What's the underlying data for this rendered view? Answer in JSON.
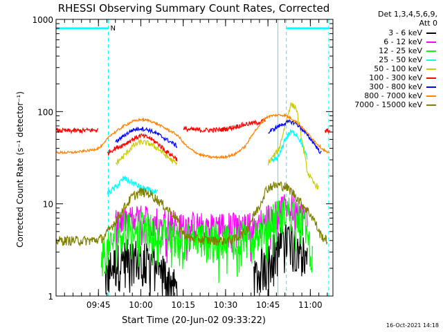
{
  "chart_data": {
    "type": "line",
    "title": "RHESSI Observing Summary Count Rates, Corrected",
    "xlabel": "Start Time (20-Jun-02 09:33:22)",
    "ylabel": "Corrected Count Rate (s⁻¹ detector⁻¹)",
    "yscale": "log",
    "ylim": [
      1,
      1000
    ],
    "xlim_minutes": [
      -3,
      95
    ],
    "x_ticks": [
      {
        "label": "09:45",
        "minute": 12
      },
      {
        "label": "10:00",
        "minute": 27
      },
      {
        "label": "10:15",
        "minute": 42
      },
      {
        "label": "10:30",
        "minute": 57
      },
      {
        "label": "10:45",
        "minute": 72
      },
      {
        "label": "11:00",
        "minute": 87
      }
    ],
    "y_ticks": [
      {
        "label": "1",
        "value": 1
      },
      {
        "label": "10",
        "value": 10
      },
      {
        "label": "100",
        "value": 100
      },
      {
        "label": "1000",
        "value": 1000
      }
    ],
    "header": [
      "Det 1,3,4,5,6,9,",
      "Att 0"
    ],
    "flag_label": "N",
    "night_bars": [
      [
        -3,
        15.5
      ],
      [
        78.5,
        93.5
      ]
    ],
    "night_markers": [
      15.5,
      78.5,
      93.5
    ],
    "saa_markers": [
      75.5
    ],
    "x": [
      -3,
      0,
      3,
      6,
      9,
      12,
      13,
      14,
      15,
      16,
      18,
      21,
      24,
      27,
      30,
      33,
      36,
      39,
      40,
      41,
      42,
      44,
      48,
      52,
      56,
      60,
      64,
      67,
      69,
      70,
      71,
      72,
      73,
      76,
      78,
      80,
      82,
      84,
      86,
      88,
      89,
      90,
      91,
      92,
      93,
      94,
      95
    ],
    "series": [
      {
        "name": "3 - 6 keV",
        "color": "#000000",
        "values": [
          null,
          null,
          null,
          null,
          null,
          null,
          null,
          1.5,
          1.7,
          2.0,
          2.3,
          2.6,
          2.8,
          2.6,
          2.4,
          2.2,
          1.7,
          1.3,
          1.1,
          null,
          null,
          null,
          null,
          null,
          null,
          null,
          null,
          1.5,
          2.0,
          2.4,
          2.6,
          2.8,
          3.0,
          3.5,
          4.2,
          4.5,
          4.0,
          3.4,
          2.8,
          null,
          null,
          null,
          null,
          null,
          null,
          null,
          null
        ]
      },
      {
        "name": "6 - 12 keV",
        "color": "#ff00ff",
        "values": [
          null,
          null,
          null,
          null,
          null,
          null,
          null,
          null,
          null,
          null,
          6.3,
          6.8,
          7.2,
          7.2,
          7.0,
          6.8,
          6.6,
          6.4,
          6.3,
          6.2,
          6.2,
          6.1,
          6.0,
          6.0,
          6.0,
          6.0,
          6.0,
          6.1,
          6.3,
          6.6,
          7.0,
          7.5,
          8.0,
          8.8,
          9.5,
          9.8,
          9.2,
          8.2,
          7.2,
          null,
          null,
          null,
          null,
          null,
          null,
          null,
          null
        ]
      },
      {
        "name": "12 - 25 keV",
        "color": "#00ff00",
        "values": [
          null,
          null,
          null,
          null,
          null,
          null,
          2.8,
          3.0,
          3.2,
          3.5,
          4.5,
          5.5,
          6.0,
          5.8,
          5.4,
          5.0,
          4.7,
          4.5,
          4.4,
          4.2,
          4.4,
          4.4,
          4.4,
          4.4,
          4.4,
          4.4,
          4.5,
          4.6,
          5.0,
          5.5,
          6.0,
          6.5,
          7.0,
          7.8,
          8.5,
          8.6,
          8.0,
          7.0,
          5.0,
          2.5,
          null,
          null,
          null,
          null,
          null,
          null,
          null
        ]
      },
      {
        "name": "25 - 50 keV",
        "color": "#00ffff",
        "values": [
          null,
          null,
          null,
          null,
          null,
          null,
          null,
          null,
          13,
          13.5,
          15,
          19,
          17,
          15,
          14,
          13,
          null,
          null,
          null,
          null,
          null,
          null,
          null,
          null,
          null,
          null,
          null,
          null,
          null,
          null,
          null,
          null,
          28,
          33,
          50,
          60,
          58,
          45,
          30,
          null,
          null,
          null,
          null,
          null,
          null,
          null,
          null
        ]
      },
      {
        "name": "50 - 100 keV",
        "color": "#cccc00",
        "values": [
          null,
          null,
          null,
          null,
          null,
          null,
          null,
          null,
          null,
          null,
          27,
          33,
          42,
          47,
          45,
          40,
          33,
          28,
          26,
          null,
          null,
          null,
          null,
          null,
          null,
          null,
          null,
          null,
          null,
          null,
          null,
          28,
          30,
          40,
          70,
          120,
          110,
          50,
          22,
          17,
          16,
          15,
          null,
          null,
          null,
          null,
          null
        ]
      },
      {
        "name": "100 - 300 keV",
        "color": "#ff0000",
        "values": [
          62,
          62,
          62,
          62,
          63,
          63,
          null,
          null,
          35,
          37,
          40,
          44,
          50,
          55,
          52,
          45,
          37,
          32,
          30,
          null,
          65,
          64,
          63,
          63,
          64,
          68,
          73,
          75,
          77,
          78,
          80,
          null,
          null,
          null,
          null,
          null,
          null,
          null,
          null,
          null,
          null,
          null,
          null,
          60,
          62,
          63,
          null
        ]
      },
      {
        "name": "300 - 800 keV",
        "color": "#0000ff",
        "values": [
          null,
          null,
          null,
          null,
          null,
          null,
          null,
          null,
          null,
          null,
          46,
          55,
          63,
          66,
          63,
          57,
          50,
          44,
          42,
          null,
          null,
          null,
          null,
          null,
          null,
          null,
          null,
          null,
          null,
          null,
          null,
          58,
          62,
          70,
          75,
          78,
          74,
          65,
          55,
          47,
          42,
          38,
          35,
          null,
          null,
          null,
          null
        ]
      },
      {
        "name": "800 - 7000 keV",
        "color": "#ff8000",
        "values": [
          36,
          36,
          36,
          37,
          38,
          40,
          42,
          45,
          50,
          55,
          60,
          70,
          78,
          82,
          80,
          73,
          65,
          58,
          55,
          51,
          46,
          40,
          34,
          32,
          32,
          34,
          42,
          60,
          70,
          78,
          85,
          88,
          90,
          92,
          91,
          85,
          78,
          68,
          58,
          50,
          46,
          43,
          40,
          38,
          36,
          35,
          null
        ]
      },
      {
        "name": "7000 - 15000 keV",
        "color": "#808000",
        "values": [
          4.0,
          4.0,
          4.0,
          4.0,
          4.0,
          4.1,
          4.2,
          4.4,
          4.8,
          5.3,
          6.5,
          9.0,
          12.0,
          13.5,
          13.0,
          11.0,
          9.0,
          7.5,
          6.5,
          5.5,
          4.8,
          4.3,
          4.1,
          4.0,
          4.0,
          4.1,
          5.0,
          7.5,
          9.5,
          11.5,
          13.5,
          15,
          15.5,
          16,
          15.5,
          14,
          12,
          10,
          8.5,
          7.0,
          6.0,
          5.0,
          4.5,
          4.2,
          4.0,
          null,
          null
        ]
      }
    ]
  },
  "timestamp": "16-Oct-2021 14:18",
  "colors": {
    "background": "#ffffff",
    "axis": "#000000",
    "night": "#00ffff"
  }
}
